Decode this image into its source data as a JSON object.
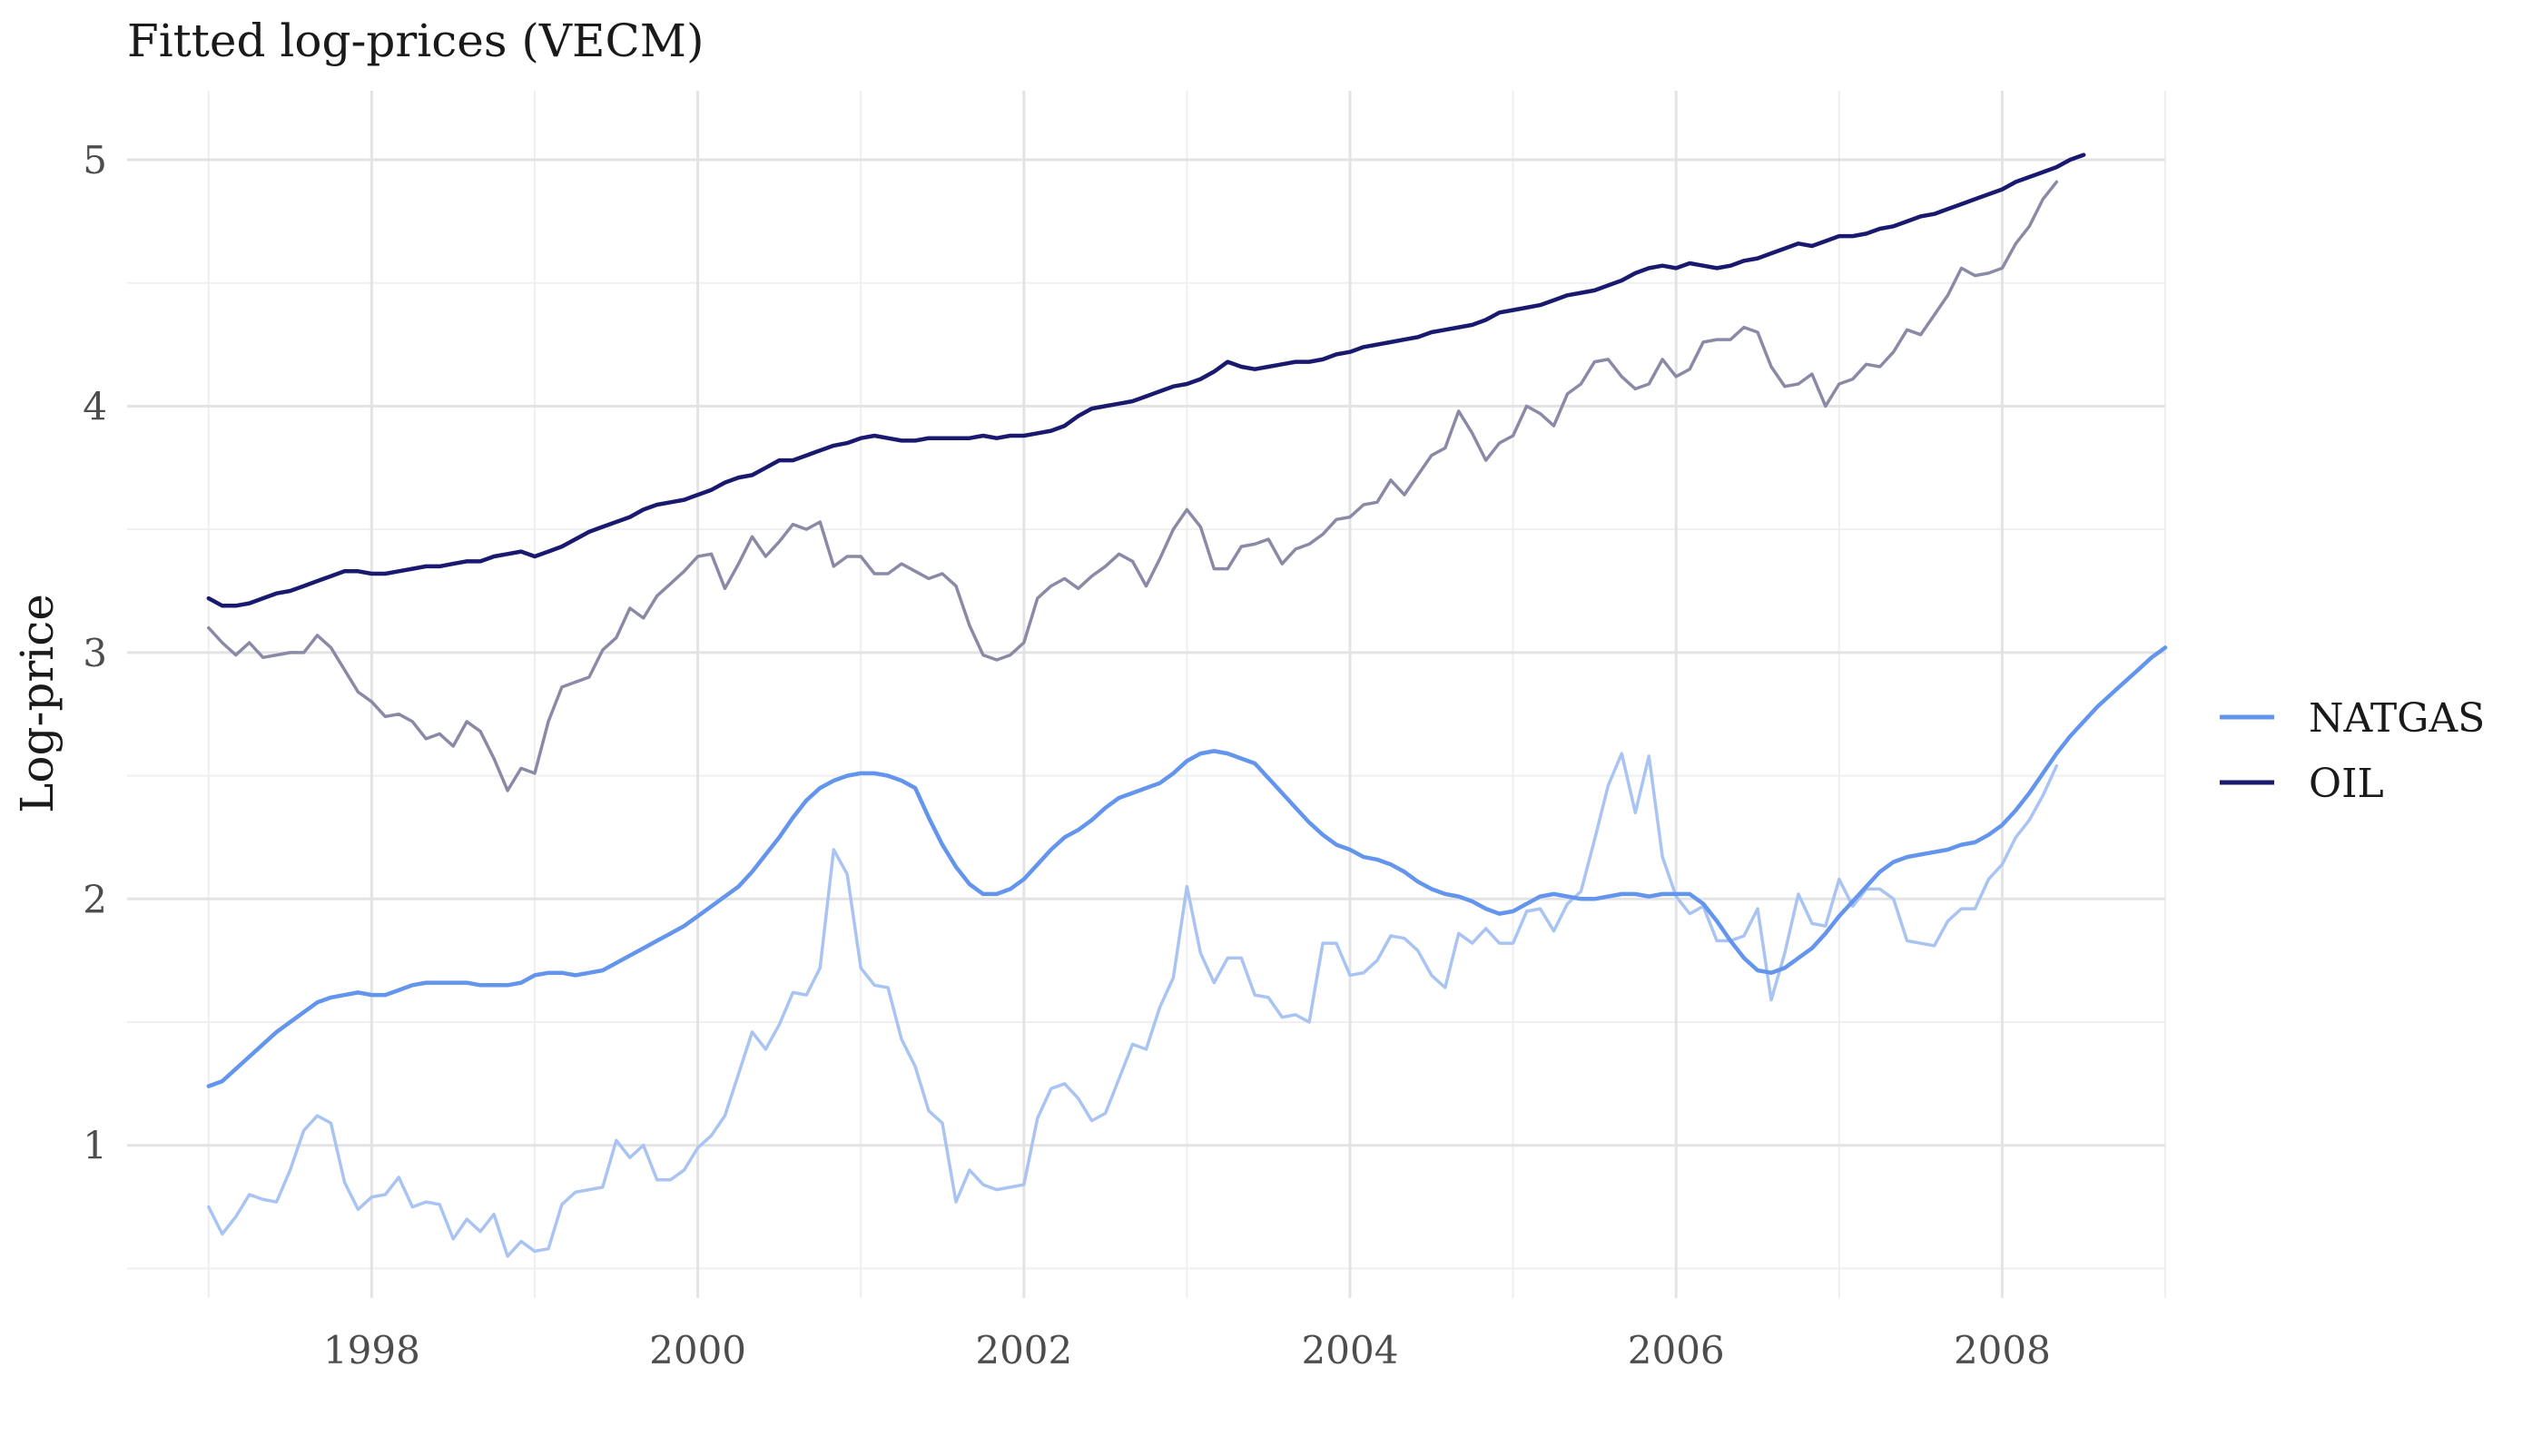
{
  "chart_data": {
    "type": "line",
    "title": "Fitted log-prices (VECM)",
    "xlabel": "",
    "ylabel": "Log-price",
    "x_ticks": [
      "1998",
      "2000",
      "2002",
      "2004",
      "2006",
      "2008"
    ],
    "x_tick_values": [
      1998,
      2000,
      2002,
      2004,
      2006,
      2008
    ],
    "y_ticks": [
      "1",
      "2",
      "3",
      "4",
      "5"
    ],
    "y_tick_values": [
      1,
      2,
      3,
      4,
      5
    ],
    "xlim": [
      1996.5,
      2009
    ],
    "ylim": [
      0.38,
      5.28
    ],
    "grid": true,
    "legend_position": "right",
    "legend": [
      {
        "name": "NATGAS",
        "color": "#6495ed"
      },
      {
        "name": "OIL",
        "color": "#191970"
      }
    ],
    "x_start": 1997.0,
    "x_step_months": 1,
    "series": [
      {
        "name": "NATGAS",
        "role": "fitted",
        "color": "#6495ed",
        "values": [
          1.24,
          1.26,
          1.31,
          1.36,
          1.41,
          1.46,
          1.5,
          1.54,
          1.58,
          1.6,
          1.61,
          1.62,
          1.61,
          1.61,
          1.63,
          1.65,
          1.66,
          1.66,
          1.66,
          1.66,
          1.65,
          1.65,
          1.65,
          1.66,
          1.69,
          1.7,
          1.7,
          1.69,
          1.7,
          1.71,
          1.74,
          1.77,
          1.8,
          1.83,
          1.86,
          1.89,
          1.93,
          1.97,
          2.01,
          2.05,
          2.11,
          2.18,
          2.25,
          2.33,
          2.4,
          2.45,
          2.48,
          2.5,
          2.51,
          2.51,
          2.5,
          2.48,
          2.45,
          2.33,
          2.22,
          2.13,
          2.06,
          2.02,
          2.02,
          2.04,
          2.08,
          2.14,
          2.2,
          2.25,
          2.28,
          2.32,
          2.37,
          2.41,
          2.43,
          2.45,
          2.47,
          2.51,
          2.56,
          2.59,
          2.6,
          2.59,
          2.57,
          2.55,
          2.49,
          2.43,
          2.37,
          2.31,
          2.26,
          2.22,
          2.2,
          2.17,
          2.16,
          2.14,
          2.11,
          2.07,
          2.04,
          2.02,
          2.01,
          1.99,
          1.96,
          1.94,
          1.95,
          1.98,
          2.01,
          2.02,
          2.01,
          2.0,
          2.0,
          2.01,
          2.02,
          2.02,
          2.01,
          2.02,
          2.02,
          2.02,
          1.98,
          1.91,
          1.83,
          1.76,
          1.71,
          1.7,
          1.72,
          1.76,
          1.8,
          1.86,
          1.93,
          1.99,
          2.05,
          2.11,
          2.15,
          2.17,
          2.18,
          2.19,
          2.2,
          2.22,
          2.23,
          2.26,
          2.3,
          2.36,
          2.43,
          2.51,
          2.59,
          2.66,
          2.72,
          2.78,
          2.83,
          2.88,
          2.93,
          2.98,
          3.02
        ]
      },
      {
        "name": "NATGAS",
        "role": "observed",
        "color": "#a9c3f3",
        "values": [
          0.75,
          0.64,
          0.71,
          0.8,
          0.78,
          0.77,
          0.9,
          1.06,
          1.12,
          1.09,
          0.85,
          0.74,
          0.79,
          0.8,
          0.87,
          0.75,
          0.77,
          0.76,
          0.62,
          0.7,
          0.65,
          0.72,
          0.55,
          0.61,
          0.57,
          0.58,
          0.76,
          0.81,
          0.82,
          0.83,
          1.02,
          0.95,
          1.0,
          0.86,
          0.86,
          0.9,
          0.99,
          1.04,
          1.12,
          1.29,
          1.46,
          1.39,
          1.49,
          1.62,
          1.61,
          1.72,
          2.2,
          2.1,
          1.72,
          1.65,
          1.64,
          1.43,
          1.32,
          1.14,
          1.09,
          0.77,
          0.9,
          0.84,
          0.82,
          0.83,
          0.84,
          1.11,
          1.23,
          1.25,
          1.19,
          1.1,
          1.13,
          1.27,
          1.41,
          1.39,
          1.56,
          1.68,
          2.05,
          1.78,
          1.66,
          1.76,
          1.76,
          1.61,
          1.6,
          1.52,
          1.53,
          1.5,
          1.82,
          1.82,
          1.69,
          1.7,
          1.75,
          1.85,
          1.84,
          1.79,
          1.69,
          1.64,
          1.86,
          1.82,
          1.88,
          1.82,
          1.82,
          1.95,
          1.96,
          1.87,
          1.98,
          2.03,
          2.24,
          2.46,
          2.59,
          2.35,
          2.58,
          2.17,
          2.01,
          1.94,
          1.97,
          1.83,
          1.83,
          1.85,
          1.96,
          1.59,
          1.78,
          2.02,
          1.9,
          1.89,
          2.08,
          1.97,
          2.04,
          2.04,
          2.0,
          1.83,
          1.82,
          1.81,
          1.91,
          1.96,
          1.96,
          2.08,
          2.14,
          2.25,
          2.32,
          2.42,
          2.54
        ]
      },
      {
        "name": "OIL",
        "role": "fitted",
        "color": "#191970",
        "values": [
          3.22,
          3.19,
          3.19,
          3.2,
          3.22,
          3.24,
          3.25,
          3.27,
          3.29,
          3.31,
          3.33,
          3.33,
          3.32,
          3.32,
          3.33,
          3.34,
          3.35,
          3.35,
          3.36,
          3.37,
          3.37,
          3.39,
          3.4,
          3.41,
          3.39,
          3.41,
          3.43,
          3.46,
          3.49,
          3.51,
          3.53,
          3.55,
          3.58,
          3.6,
          3.61,
          3.62,
          3.64,
          3.66,
          3.69,
          3.71,
          3.72,
          3.75,
          3.78,
          3.78,
          3.8,
          3.82,
          3.84,
          3.85,
          3.87,
          3.88,
          3.87,
          3.86,
          3.86,
          3.87,
          3.87,
          3.87,
          3.87,
          3.88,
          3.87,
          3.88,
          3.88,
          3.89,
          3.9,
          3.92,
          3.96,
          3.99,
          4.0,
          4.01,
          4.02,
          4.04,
          4.06,
          4.08,
          4.09,
          4.11,
          4.14,
          4.18,
          4.16,
          4.15,
          4.16,
          4.17,
          4.18,
          4.18,
          4.19,
          4.21,
          4.22,
          4.24,
          4.25,
          4.26,
          4.27,
          4.28,
          4.3,
          4.31,
          4.32,
          4.33,
          4.35,
          4.38,
          4.39,
          4.4,
          4.41,
          4.43,
          4.45,
          4.46,
          4.47,
          4.49,
          4.51,
          4.54,
          4.56,
          4.57,
          4.56,
          4.58,
          4.57,
          4.56,
          4.57,
          4.59,
          4.6,
          4.62,
          4.64,
          4.66,
          4.65,
          4.67,
          4.69,
          4.69,
          4.7,
          4.72,
          4.73,
          4.75,
          4.77,
          4.78,
          4.8,
          4.82,
          4.84,
          4.86,
          4.88,
          4.91,
          4.93,
          4.95,
          4.97,
          5.0,
          5.02
        ]
      },
      {
        "name": "OIL",
        "role": "observed",
        "color": "#8a8aa6",
        "values": [
          3.1,
          3.04,
          2.99,
          3.04,
          2.98,
          2.99,
          3.0,
          3.0,
          3.07,
          3.02,
          2.93,
          2.84,
          2.8,
          2.74,
          2.75,
          2.72,
          2.65,
          2.67,
          2.62,
          2.72,
          2.68,
          2.57,
          2.44,
          2.53,
          2.51,
          2.72,
          2.86,
          2.88,
          2.9,
          3.01,
          3.06,
          3.18,
          3.14,
          3.23,
          3.28,
          3.33,
          3.39,
          3.4,
          3.26,
          3.36,
          3.47,
          3.39,
          3.45,
          3.52,
          3.5,
          3.53,
          3.35,
          3.39,
          3.39,
          3.32,
          3.32,
          3.36,
          3.33,
          3.3,
          3.32,
          3.27,
          3.11,
          2.99,
          2.97,
          2.99,
          3.04,
          3.22,
          3.27,
          3.3,
          3.26,
          3.31,
          3.35,
          3.4,
          3.37,
          3.27,
          3.38,
          3.5,
          3.58,
          3.51,
          3.34,
          3.34,
          3.43,
          3.44,
          3.46,
          3.36,
          3.42,
          3.44,
          3.48,
          3.54,
          3.55,
          3.6,
          3.61,
          3.7,
          3.64,
          3.72,
          3.8,
          3.83,
          3.98,
          3.89,
          3.78,
          3.85,
          3.88,
          4.0,
          3.97,
          3.92,
          4.05,
          4.09,
          4.18,
          4.19,
          4.12,
          4.07,
          4.09,
          4.19,
          4.12,
          4.15,
          4.26,
          4.27,
          4.27,
          4.32,
          4.3,
          4.16,
          4.08,
          4.09,
          4.13,
          4.0,
          4.09,
          4.11,
          4.17,
          4.16,
          4.22,
          4.31,
          4.29,
          4.37,
          4.45,
          4.56,
          4.53,
          4.54,
          4.56,
          4.66,
          4.73,
          4.84,
          4.91
        ]
      }
    ]
  }
}
